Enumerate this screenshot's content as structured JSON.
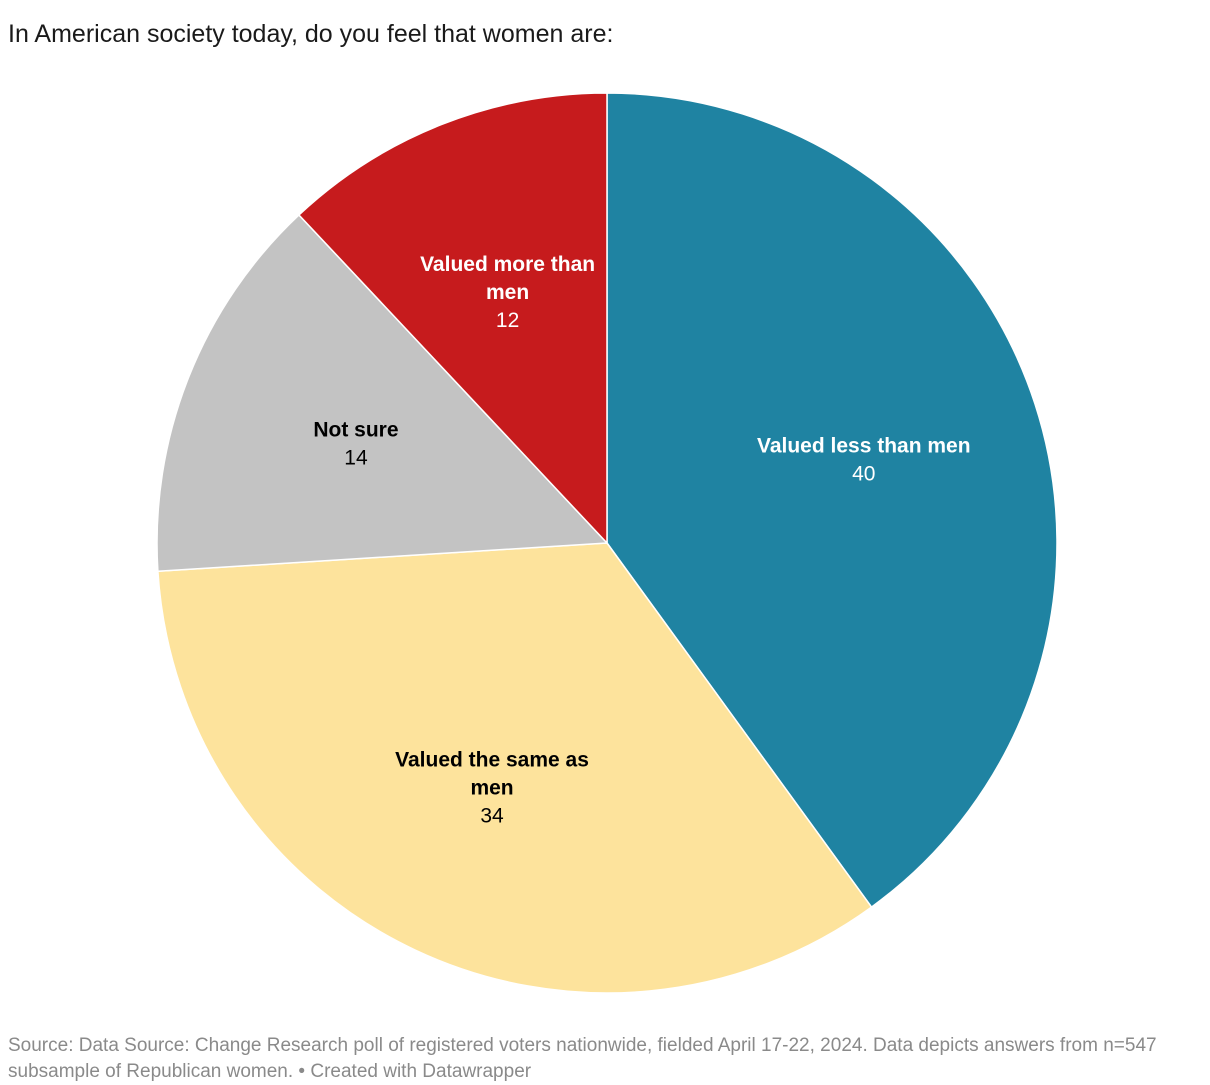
{
  "chart_data": {
    "type": "pie",
    "title": "In American society today, do you feel that women are:",
    "slices": [
      {
        "label": "Valued less than men",
        "value": 40,
        "color": "#1f83a2",
        "text_color": "#ffffff"
      },
      {
        "label": "Valued the same as men",
        "value": 34,
        "color": "#fde39c",
        "text_color": "#000000"
      },
      {
        "label": "Not sure",
        "value": 14,
        "color": "#c3c3c3",
        "text_color": "#000000"
      },
      {
        "label": "Valued more than men",
        "value": 12,
        "color": "#c61b1d",
        "text_color": "#ffffff"
      }
    ]
  },
  "footer": {
    "source": "Source: Data Source: Change Research poll of registered voters nationwide, fielded April 17-22, 2024. Data depicts answers from n=547 subsample of Republican women. • Created with Datawrapper"
  }
}
